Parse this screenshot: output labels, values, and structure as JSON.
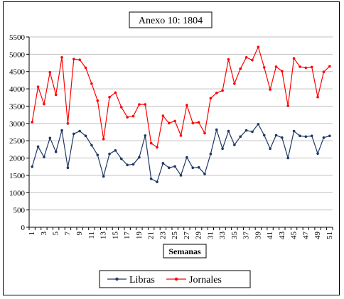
{
  "chart_data": {
    "type": "line",
    "title": "Anexo 10: 1804",
    "xlabel": "Semanas",
    "ylabel": "",
    "ylim": [
      0,
      5500
    ],
    "yticks": [
      0,
      500,
      1000,
      1500,
      2000,
      2500,
      3000,
      3500,
      4000,
      4500,
      5000,
      5500
    ],
    "x": [
      1,
      2,
      3,
      4,
      5,
      6,
      7,
      8,
      9,
      10,
      11,
      12,
      13,
      14,
      15,
      16,
      17,
      18,
      19,
      20,
      21,
      22,
      23,
      24,
      25,
      26,
      27,
      28,
      29,
      30,
      31,
      32,
      33,
      34,
      35,
      36,
      37,
      38,
      39,
      40,
      41,
      42,
      43,
      44,
      45,
      46,
      47,
      48,
      49,
      50,
      51
    ],
    "xtick_labels": [
      1,
      3,
      5,
      7,
      9,
      11,
      13,
      15,
      17,
      19,
      21,
      23,
      25,
      27,
      29,
      31,
      33,
      35,
      37,
      39,
      41,
      43,
      45,
      47,
      49,
      51
    ],
    "grid": "horizontal",
    "legend_position": "bottom",
    "series": [
      {
        "name": "Libras",
        "color": "#1f3864",
        "values": [
          1750,
          2330,
          2030,
          2580,
          2180,
          2800,
          1720,
          2700,
          2780,
          2640,
          2370,
          2090,
          1470,
          2120,
          2220,
          1980,
          1800,
          1820,
          2020,
          2650,
          1400,
          1310,
          1850,
          1720,
          1760,
          1500,
          2020,
          1720,
          1730,
          1540,
          2120,
          2820,
          2270,
          2780,
          2380,
          2620,
          2800,
          2760,
          2980,
          2660,
          2270,
          2660,
          2590,
          2000,
          2780,
          2640,
          2620,
          2640,
          2130,
          2590,
          2640
        ]
      },
      {
        "name": "Jornales",
        "color": "#ff0000",
        "values": [
          3040,
          4060,
          3560,
          4480,
          3830,
          4910,
          3000,
          4860,
          4840,
          4610,
          4150,
          3660,
          2550,
          3760,
          3890,
          3470,
          3180,
          3210,
          3550,
          3550,
          2430,
          2310,
          3220,
          3010,
          3070,
          2650,
          3530,
          3010,
          3030,
          2720,
          3730,
          3880,
          3950,
          4850,
          4150,
          4580,
          4910,
          4830,
          5210,
          4620,
          3980,
          4640,
          4510,
          3510,
          4880,
          4640,
          4610,
          4630,
          3760,
          4490,
          4650
        ]
      }
    ]
  }
}
